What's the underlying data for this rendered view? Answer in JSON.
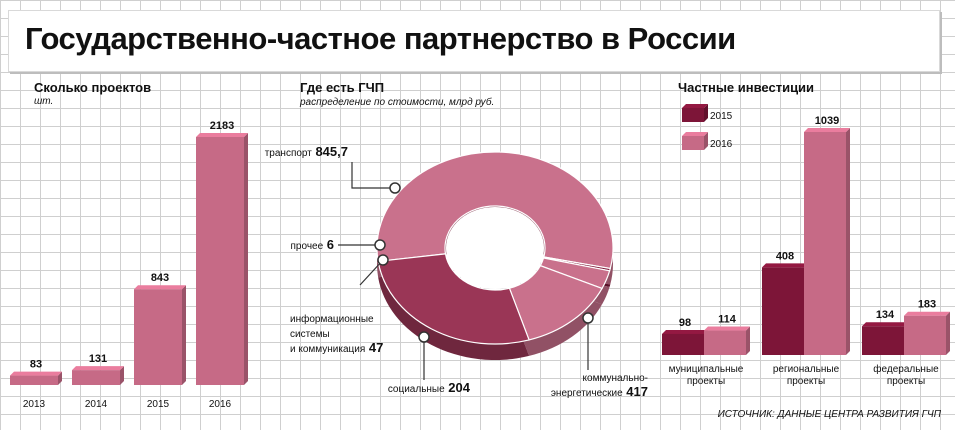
{
  "title": "Государственно-частное партнерство в России",
  "source": "ИСТОЧНИК: ДАННЫЕ ЦЕНТРА РАЗВИТИЯ ГЧП",
  "colors": {
    "dark": "#7d1538",
    "light": "#c66a86",
    "donut_light": "#c9718c",
    "donut_dark": "#9a3656"
  },
  "projects": {
    "title": "Сколько проектов",
    "unit": "шт."
  },
  "ppp": {
    "title": "Где есть ГЧП",
    "subtitle": "распределение по стоимости, млрд руб."
  },
  "investments": {
    "title": "Частные инвестиции"
  },
  "chart_data": [
    {
      "type": "bar",
      "title": "Сколько проектов",
      "ylabel": "шт.",
      "categories": [
        "2013",
        "2014",
        "2015",
        "2016"
      ],
      "values": [
        83,
        131,
        843,
        2183
      ],
      "value_labels": [
        "83",
        "131",
        "843",
        "2183"
      ]
    },
    {
      "type": "pie",
      "title": "Где есть ГЧП",
      "subtitle": "распределение по стоимости, млрд руб.",
      "slices": [
        {
          "label": "транспорт",
          "value": 845.7,
          "value_label": "845,7",
          "color": "#c9718c"
        },
        {
          "label": "прочее",
          "value": 6,
          "value_label": "6",
          "color": "#7d1538"
        },
        {
          "label": "информационные системы и коммуникация",
          "label_lines": [
            "информационные",
            "системы",
            "и коммуникация"
          ],
          "value": 47,
          "value_label": "47",
          "color": "#c9718c"
        },
        {
          "label": "социальные",
          "value": 204,
          "value_label": "204",
          "color": "#c9718c"
        },
        {
          "label": "коммунально-энергетические",
          "label_lines": [
            "коммунально-",
            "энергетические"
          ],
          "value": 417,
          "value_label": "417",
          "color": "#9a3656"
        }
      ]
    },
    {
      "type": "bar",
      "title": "Частные инвестиции",
      "categories": [
        "муниципальные проекты",
        "региональные проекты",
        "федеральные проекты"
      ],
      "category_lines": [
        [
          "муниципальные",
          "проекты"
        ],
        [
          "региональные",
          "проекты"
        ],
        [
          "федеральные",
          "проекты"
        ]
      ],
      "series": [
        {
          "name": "2015",
          "values": [
            98,
            408,
            134
          ],
          "color": "#7d1538"
        },
        {
          "name": "2016",
          "values": [
            114,
            1039,
            183
          ],
          "color": "#c66a86"
        }
      ]
    }
  ]
}
